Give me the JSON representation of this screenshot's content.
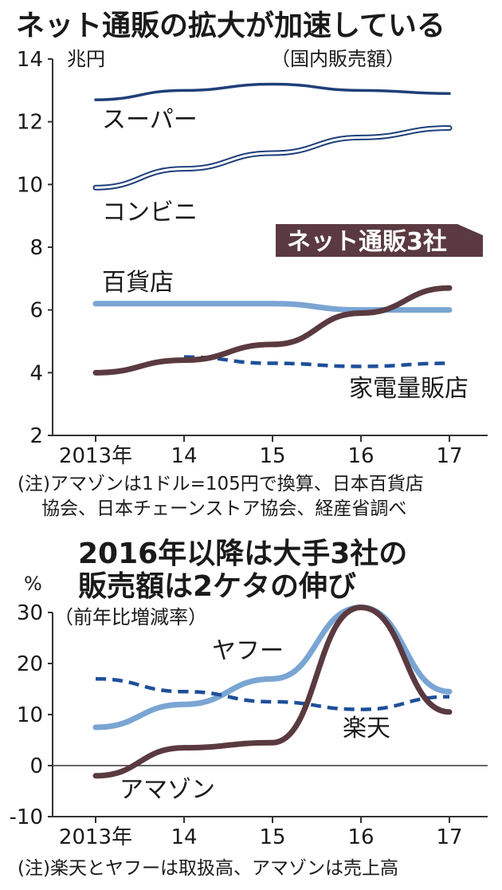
{
  "chart_data": [
    {
      "type": "line",
      "title": "ネット通販の拡大が加速している",
      "subtitle": "（国内販売額）",
      "unit": "兆円",
      "categories": [
        "2013年",
        "14",
        "15",
        "16",
        "17"
      ],
      "ylim": [
        2,
        14
      ],
      "yticks": [
        2,
        4,
        6,
        8,
        10,
        12,
        14
      ],
      "note": "(注)アマゾンは1ドル=105円で換算、日本百貨店協会、日本チェーンストア協会、経産省調べ",
      "note_lines": [
        "(注)アマゾンは1ドル=105円で換算、日本百貨店",
        "協会、日本チェーンストア協会、経産省調べ"
      ],
      "series": [
        {
          "name": "スーパー",
          "values": [
            12.7,
            13.0,
            13.2,
            13.0,
            12.9
          ],
          "color": "#1f3f7a",
          "style": "solid"
        },
        {
          "name": "コンビニ",
          "values": [
            9.9,
            10.5,
            11.0,
            11.5,
            11.8
          ],
          "color": "#1f3f7a",
          "style": "double"
        },
        {
          "name": "百貨店",
          "values": [
            6.2,
            6.2,
            6.2,
            6.0,
            6.0
          ],
          "color": "#7aa5d3",
          "style": "thick"
        },
        {
          "name": "家電量販店",
          "values": [
            null,
            4.5,
            4.3,
            4.2,
            4.3
          ],
          "color": "#1f4f9a",
          "style": "dashed"
        },
        {
          "name": "ネット通販3社",
          "values": [
            4.0,
            4.4,
            4.9,
            5.9,
            6.7
          ],
          "color": "#5a3a40",
          "style": "thick",
          "highlight": true
        }
      ]
    },
    {
      "type": "line",
      "title": "2016年以降は大手3社の販売額は2ケタの伸び",
      "title_lines": [
        "2016年以降は大手3社の",
        "販売額は2ケタの伸び"
      ],
      "subtitle": "（前年比増減率）",
      "unit": "%",
      "categories": [
        "2013年",
        "14",
        "15",
        "16",
        "17"
      ],
      "ylim": [
        -10,
        30
      ],
      "yticks": [
        -10,
        0,
        10,
        20,
        30
      ],
      "note": "(注)楽天とヤフーは取扱高、アマゾンは売上高",
      "series": [
        {
          "name": "ヤフー",
          "values": [
            7.5,
            12.0,
            17.0,
            31.0,
            14.5
          ],
          "color": "#7aa5d3",
          "style": "thick"
        },
        {
          "name": "楽天",
          "values": [
            17.0,
            14.5,
            12.5,
            11.0,
            13.5
          ],
          "color": "#1f4f9a",
          "style": "dashed"
        },
        {
          "name": "アマゾン",
          "values": [
            -2.0,
            3.5,
            4.5,
            31.0,
            10.5
          ],
          "color": "#5a3a40",
          "style": "thick"
        }
      ]
    }
  ]
}
